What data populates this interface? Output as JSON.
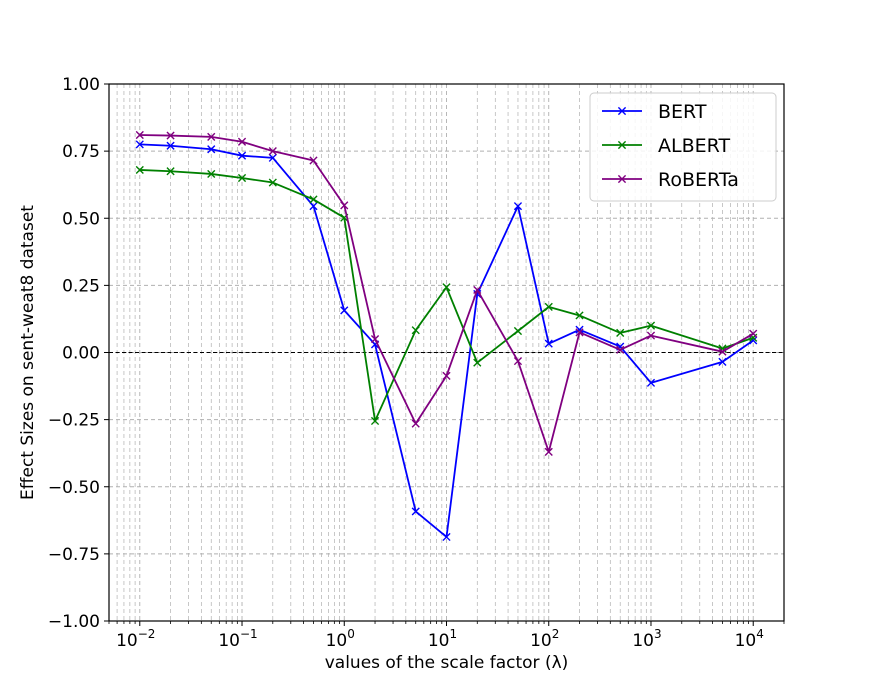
{
  "chart_data": {
    "type": "line",
    "xscale": "log",
    "x": [
      0.01,
      0.02,
      0.05,
      0.1,
      0.2,
      0.5,
      1,
      2,
      5,
      10,
      20,
      50,
      100,
      200,
      500,
      1000,
      5000,
      10000
    ],
    "series": [
      {
        "name": "BERT",
        "color": "#0000ff",
        "values": [
          0.775,
          0.77,
          0.757,
          0.733,
          0.725,
          0.545,
          0.157,
          0.03,
          -0.592,
          -0.687,
          0.218,
          0.545,
          0.033,
          0.085,
          0.022,
          -0.113,
          -0.035,
          0.045
        ]
      },
      {
        "name": "ALBERT",
        "color": "#008000",
        "values": [
          0.68,
          0.675,
          0.665,
          0.65,
          0.633,
          0.57,
          0.502,
          -0.255,
          0.083,
          0.243,
          -0.038,
          0.08,
          0.17,
          0.138,
          0.073,
          0.1,
          0.015,
          0.055
        ]
      },
      {
        "name": "RoBERTa",
        "color": "#800080",
        "values": [
          0.81,
          0.808,
          0.803,
          0.785,
          0.75,
          0.715,
          0.548,
          0.05,
          -0.265,
          -0.087,
          0.233,
          -0.032,
          -0.37,
          0.075,
          0.01,
          0.063,
          0.003,
          0.07
        ]
      }
    ],
    "xlabel": "values of the scale factor (λ)",
    "ylabel": "Effect Sizes on sent-weat8 dataset",
    "ylim": [
      -1.0,
      1.0
    ],
    "xlim": [
      0.005,
      20000
    ],
    "yticks": [
      "−1.00",
      "−0.75",
      "−0.50",
      "−0.25",
      "0.00",
      "0.25",
      "0.50",
      "0.75",
      "1.00"
    ],
    "xtick_mantissa": "10",
    "xtick_exponents": [
      "−2",
      "−1",
      "0",
      "1",
      "2",
      "3",
      "4"
    ],
    "reference_line": 0,
    "grid": true,
    "legend_position": "top-right",
    "marker": "x"
  }
}
